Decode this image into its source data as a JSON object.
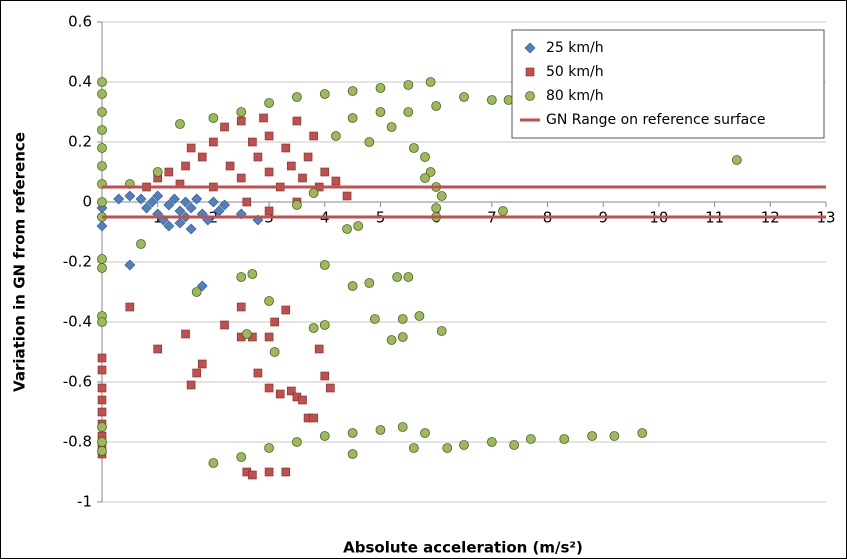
{
  "chart_data": {
    "type": "scatter",
    "x_label": "Absolute acceleration (m/s²)",
    "y_label": "Variation in GN from reference",
    "xlim": [
      0,
      13
    ],
    "xticks": [
      1,
      2,
      3,
      4,
      5,
      6,
      7,
      8,
      9,
      10,
      11,
      12,
      13
    ],
    "ylim": [
      -1,
      0.6
    ],
    "yticks": [
      0.6,
      0.4,
      0.2,
      0,
      -0.2,
      -0.4,
      -0.6,
      -0.8,
      -1
    ],
    "grid": true,
    "legend": "upper right",
    "series": [
      {
        "name": "25 km/h",
        "color": "#4f81bd",
        "marker": "diamond",
        "x": [
          0,
          0,
          0,
          0.3,
          0.5,
          0.5,
          0.7,
          0.8,
          0.9,
          1.0,
          1.0,
          1.1,
          1.2,
          1.2,
          1.3,
          1.4,
          1.4,
          1.5,
          1.5,
          1.6,
          1.6,
          1.7,
          1.8,
          1.8,
          1.9,
          2.0,
          2.1,
          2.2,
          2.5,
          2.8
        ],
        "values": [
          -0.02,
          -0.05,
          -0.08,
          0.01,
          0.02,
          -0.21,
          0.01,
          -0.02,
          0.0,
          -0.04,
          0.02,
          -0.06,
          -0.01,
          -0.08,
          0.01,
          -0.03,
          -0.07,
          0.0,
          -0.05,
          -0.02,
          -0.09,
          0.01,
          -0.04,
          -0.28,
          -0.06,
          0.0,
          -0.03,
          -0.01,
          -0.04,
          -0.06
        ]
      },
      {
        "name": "50 km/h",
        "color": "#c0504d",
        "marker": "square",
        "x": [
          0,
          0,
          0,
          0,
          0,
          0,
          0,
          0,
          0,
          0.5,
          1.0,
          1.5,
          1.6,
          1.7,
          1.8,
          2.2,
          2.5,
          2.5,
          2.7,
          2.8,
          3.0,
          3.2,
          3.4,
          3.5,
          3.6,
          3.7,
          3.8,
          3.0,
          3.1,
          3.3,
          2.6,
          2.7,
          3.0,
          3.3,
          4.0,
          4.1,
          3.9,
          0.8,
          1.0,
          1.2,
          1.4,
          1.5,
          1.6,
          1.8,
          2.0,
          2.0,
          2.2,
          2.3,
          2.5,
          2.5,
          2.7,
          2.8,
          2.9,
          3.0,
          3.0,
          3.2,
          3.3,
          3.4,
          3.5,
          3.5,
          3.6,
          3.7,
          3.8,
          3.9,
          4.0,
          4.2,
          4.4,
          3.0,
          2.6
        ],
        "values": [
          -0.52,
          -0.56,
          -0.62,
          -0.66,
          -0.7,
          -0.74,
          -0.78,
          -0.82,
          -0.84,
          -0.35,
          -0.49,
          -0.44,
          -0.61,
          -0.57,
          -0.54,
          -0.41,
          -0.35,
          -0.45,
          -0.45,
          -0.57,
          -0.62,
          -0.64,
          -0.63,
          -0.65,
          -0.66,
          -0.72,
          -0.72,
          -0.45,
          -0.4,
          -0.36,
          -0.9,
          -0.91,
          -0.9,
          -0.9,
          -0.58,
          -0.62,
          -0.49,
          0.05,
          0.08,
          0.1,
          0.06,
          0.12,
          0.18,
          0.15,
          0.2,
          0.05,
          0.25,
          0.12,
          0.27,
          0.08,
          0.2,
          0.15,
          0.28,
          0.1,
          0.22,
          0.05,
          0.18,
          0.12,
          0.27,
          0.0,
          0.08,
          0.15,
          0.22,
          0.05,
          0.1,
          0.07,
          0.02,
          -0.03,
          0.0
        ]
      },
      {
        "name": "80 km/h",
        "color": "#9bbb59",
        "marker": "circle",
        "x": [
          0,
          0,
          0,
          0,
          0,
          0,
          0,
          0,
          0,
          0,
          0,
          0,
          0,
          0,
          0,
          0,
          1.4,
          2.0,
          2.5,
          3.0,
          3.5,
          4.0,
          4.5,
          5.0,
          5.5,
          5.9,
          6.5,
          7.0,
          7.3,
          4.5,
          5.0,
          5.5,
          6.0,
          4.2,
          4.8,
          5.2,
          5.6,
          5.8,
          5.9,
          6.0,
          6.1,
          6.0,
          5.8,
          1.0,
          0.5,
          3.5,
          3.8,
          4.4,
          4.6,
          7.2,
          11.4,
          0.7,
          6.0,
          1.7,
          2.5,
          2.7,
          3.0,
          4.0,
          4.5,
          4.8,
          4.9,
          5.3,
          5.5,
          5.4,
          5.7,
          5.2,
          5.4,
          6.1,
          4.0,
          3.8,
          2.6,
          3.1,
          4.5,
          2.0,
          2.5,
          3.0,
          3.5,
          4.0,
          4.5,
          5.0,
          5.4,
          5.8,
          5.6,
          6.2,
          6.5,
          7.0,
          7.4,
          7.7,
          8.3,
          8.8,
          9.2,
          9.7
        ],
        "values": [
          0.4,
          0.36,
          0.3,
          0.24,
          0.18,
          0.12,
          0.06,
          0.0,
          -0.05,
          -0.19,
          -0.22,
          -0.38,
          -0.4,
          -0.75,
          -0.8,
          -0.83,
          0.26,
          0.28,
          0.3,
          0.33,
          0.35,
          0.36,
          0.37,
          0.38,
          0.39,
          0.4,
          0.35,
          0.34,
          0.34,
          0.28,
          0.3,
          0.3,
          0.32,
          0.22,
          0.2,
          0.25,
          0.18,
          0.15,
          0.1,
          0.05,
          0.02,
          -0.02,
          0.08,
          0.1,
          0.06,
          -0.01,
          0.03,
          -0.09,
          -0.08,
          -0.03,
          0.14,
          -0.14,
          -0.05,
          -0.3,
          -0.25,
          -0.24,
          -0.33,
          -0.21,
          -0.28,
          -0.27,
          -0.39,
          -0.25,
          -0.25,
          -0.39,
          -0.38,
          -0.46,
          -0.45,
          -0.43,
          -0.41,
          -0.42,
          -0.44,
          -0.5,
          -0.84,
          -0.87,
          -0.85,
          -0.82,
          -0.8,
          -0.78,
          -0.77,
          -0.76,
          -0.75,
          -0.77,
          -0.82,
          -0.82,
          -0.81,
          -0.8,
          -0.81,
          -0.79,
          -0.79,
          -0.78,
          -0.78,
          -0.77
        ]
      }
    ],
    "reference_range": {
      "name": "GN Range on reference surface",
      "color": "#c0504d",
      "values": [
        0.05,
        -0.05
      ]
    }
  }
}
